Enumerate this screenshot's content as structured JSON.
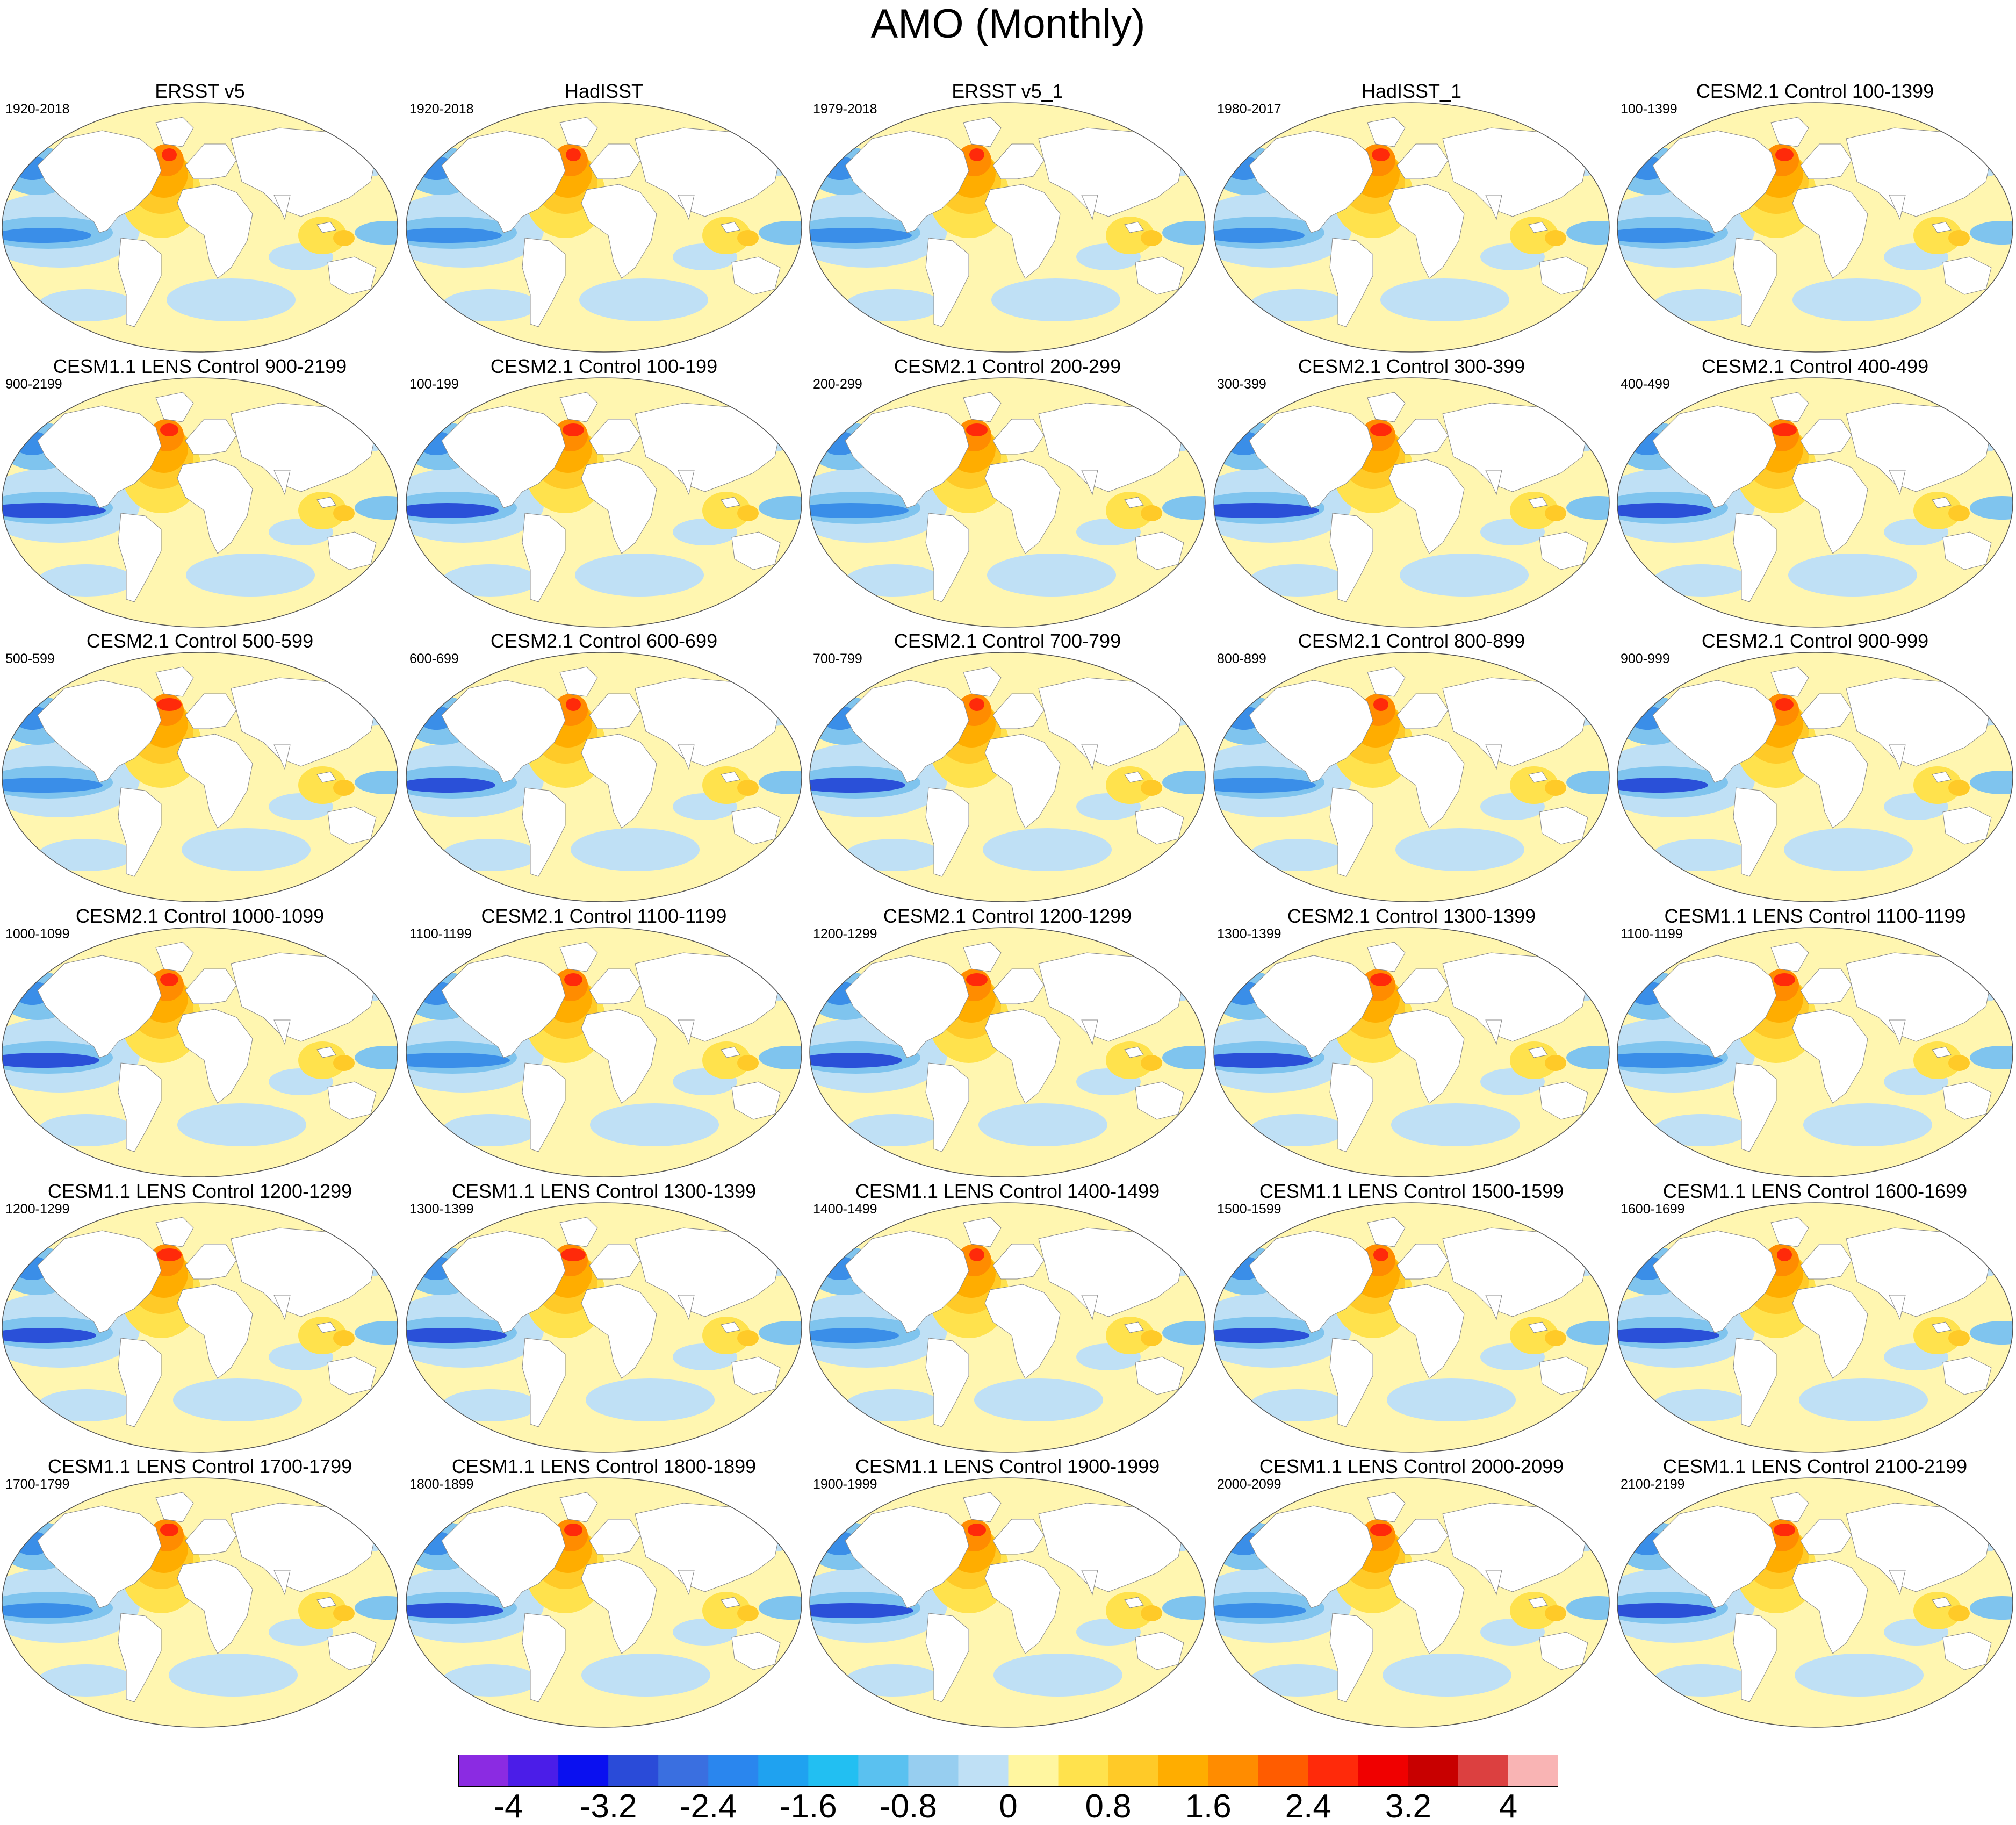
{
  "figure_title": "AMO (Monthly)",
  "panels": [
    {
      "title": "ERSST v5",
      "period": "1920-2018"
    },
    {
      "title": "HadISST",
      "period": "1920-2018"
    },
    {
      "title": "ERSST v5_1",
      "period": "1979-2018"
    },
    {
      "title": "HadISST_1",
      "period": "1980-2017"
    },
    {
      "title": "CESM2.1 Control 100-1399",
      "period": "100-1399"
    },
    {
      "title": "CESM1.1 LENS Control 900-2199",
      "period": "900-2199"
    },
    {
      "title": "CESM2.1 Control 100-199",
      "period": "100-199"
    },
    {
      "title": "CESM2.1 Control 200-299",
      "period": "200-299"
    },
    {
      "title": "CESM2.1 Control 300-399",
      "period": "300-399"
    },
    {
      "title": "CESM2.1 Control 400-499",
      "period": "400-499"
    },
    {
      "title": "CESM2.1 Control 500-599",
      "period": "500-599"
    },
    {
      "title": "CESM2.1 Control 600-699",
      "period": "600-699"
    },
    {
      "title": "CESM2.1 Control 700-799",
      "period": "700-799"
    },
    {
      "title": "CESM2.1 Control 800-899",
      "period": "800-899"
    },
    {
      "title": "CESM2.1 Control 900-999",
      "period": "900-999"
    },
    {
      "title": "CESM2.1 Control 1000-1099",
      "period": "1000-1099"
    },
    {
      "title": "CESM2.1 Control 1100-1199",
      "period": "1100-1199"
    },
    {
      "title": "CESM2.1 Control 1200-1299",
      "period": "1200-1299"
    },
    {
      "title": "CESM2.1 Control 1300-1399",
      "period": "1300-1399"
    },
    {
      "title": "CESM1.1 LENS Control 1100-1199",
      "period": "1100-1199"
    },
    {
      "title": "CESM1.1 LENS Control 1200-1299",
      "period": "1200-1299"
    },
    {
      "title": "CESM1.1 LENS Control 1300-1399",
      "period": "1300-1399"
    },
    {
      "title": "CESM1.1 LENS Control 1400-1499",
      "period": "1400-1499"
    },
    {
      "title": "CESM1.1 LENS Control 1500-1599",
      "period": "1500-1599"
    },
    {
      "title": "CESM1.1 LENS Control 1600-1699",
      "period": "1600-1699"
    },
    {
      "title": "CESM1.1 LENS Control 1700-1799",
      "period": "1700-1799"
    },
    {
      "title": "CESM1.1 LENS Control 1800-1899",
      "period": "1800-1899"
    },
    {
      "title": "CESM1.1 LENS Control 1900-1999",
      "period": "1900-1999"
    },
    {
      "title": "CESM1.1 LENS Control 2000-2099",
      "period": "2000-2099"
    },
    {
      "title": "CESM1.1 LENS Control 2100-2199",
      "period": "2100-2199"
    }
  ],
  "colorbar": {
    "colors": [
      "#8b2be2",
      "#4b1de8",
      "#0a10f0",
      "#2a4bd8",
      "#3a6fe0",
      "#2a86ee",
      "#1fa2f0",
      "#22bff2",
      "#5ac1f0",
      "#97cef0",
      "#bfe0f5",
      "#fff6a0",
      "#ffe24d",
      "#ffca28",
      "#ffad00",
      "#ff8c00",
      "#ff5c00",
      "#ff2a0a",
      "#f00000",
      "#c80000",
      "#dc4040",
      "#f9b4b4"
    ],
    "tick_labels": [
      "-4",
      "-3.2",
      "-2.4",
      "-1.6",
      "-0.8",
      "0",
      "0.8",
      "1.6",
      "2.4",
      "3.2",
      "4"
    ],
    "tick_positions": [
      1,
      3,
      5,
      7,
      9,
      11,
      13,
      15,
      17,
      19,
      21
    ]
  },
  "map_colors": {
    "land": "#ffffff",
    "neutral": "#fff6b0",
    "light_blue": "#bfe0f5",
    "mid_blue": "#7fc4ee",
    "blue": "#3a8ee8",
    "deep_blue": "#2a50d8",
    "yellow": "#ffe24d",
    "light_orange": "#ffca28",
    "orange": "#ffad00",
    "dark_orange": "#ff8c00",
    "red": "#ff2a0a",
    "coast": "#8a8a8a"
  }
}
